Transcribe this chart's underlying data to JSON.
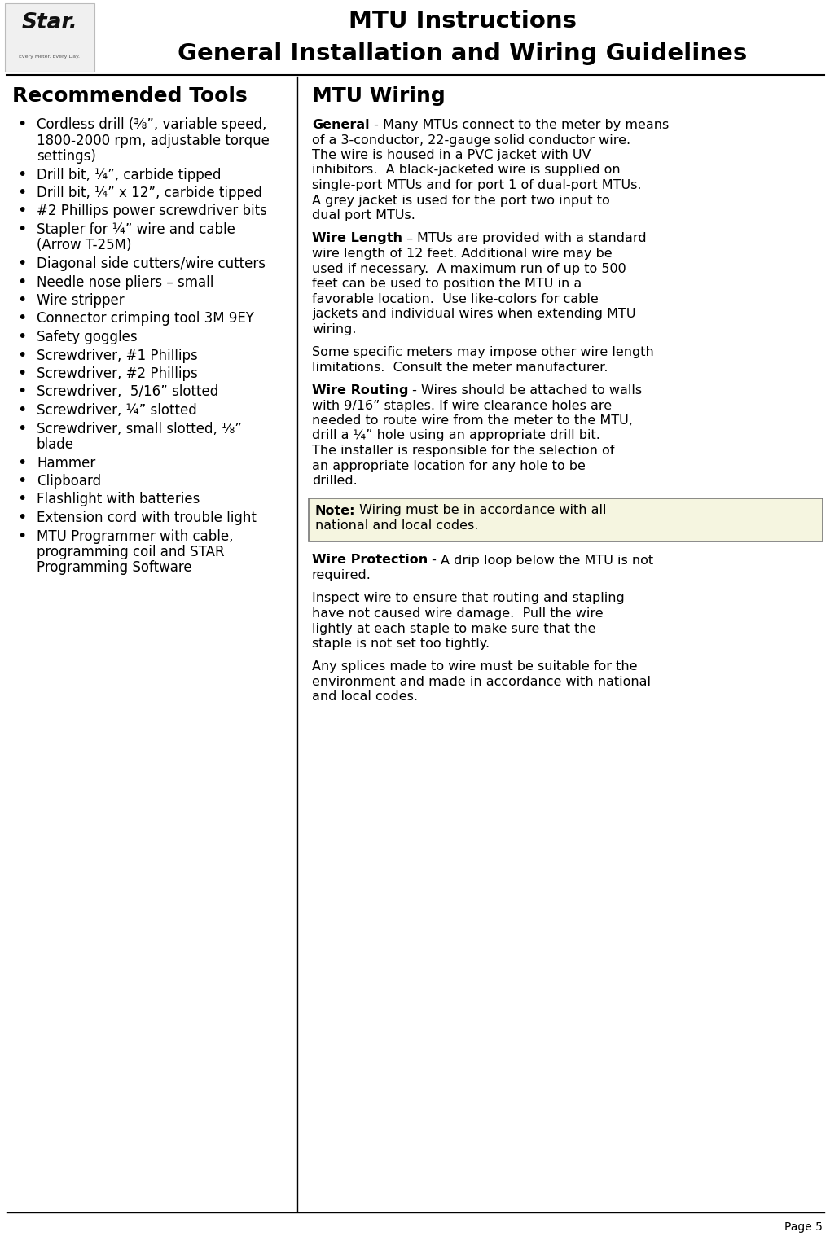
{
  "title_line1": "MTU Instructions",
  "title_line2": "General Installation and Wiring Guidelines",
  "left_heading": "Recommended Tools",
  "left_items": [
    "Cordless drill (⅜”, variable speed,\n1800-2000 rpm, adjustable torque\nsettings)",
    "Drill bit, ¼”, carbide tipped",
    "Drill bit, ¼” x 12”, carbide tipped",
    "#2 Phillips power screwdriver bits",
    "Stapler for ¼” wire and cable\n(Arrow T-25M)",
    "Diagonal side cutters/wire cutters",
    "Needle nose pliers – small",
    "Wire stripper",
    "Connector crimping tool 3M 9EY",
    "Safety goggles",
    "Screwdriver, #1 Phillips",
    "Screwdriver, #2 Phillips",
    "Screwdriver,  5/16” slotted",
    "Screwdriver, ¼” slotted",
    "Screwdriver, small slotted, ⅛”\nblade",
    "Hammer",
    "Clipboard",
    "Flashlight with batteries",
    "Extension cord with trouble light",
    "MTU Programmer with cable,\nprogramming coil and STAR\nProgramming Software"
  ],
  "right_heading": "MTU Wiring",
  "right_sections": [
    {
      "label": "General",
      "sep": " - ",
      "text": "Many MTUs connect to the meter by means of a 3-conductor, 22-gauge solid conductor wire.  The wire is housed in a PVC jacket with UV inhibitors.  A black-jacketed wire is supplied on single-port MTUs and for port 1 of dual-port MTUs.  A grey jacket is used for the port two input to dual port MTUs.",
      "is_note": false
    },
    {
      "label": "Wire Length",
      "sep": " – ",
      "text": "MTUs are provided with a standard wire length of 12 feet. Additional wire may be used if necessary.  A maximum run of up to 500 feet can be used to position the MTU in a favorable location.  Use like-colors for cable jackets and individual wires when extending MTU wiring.",
      "is_note": false
    },
    {
      "label": "",
      "sep": "",
      "text": "Some specific meters may impose other wire length limitations.  Consult the meter manufacturer.",
      "is_note": false
    },
    {
      "label": "Wire Routing",
      "sep": " - ",
      "text": "Wires should be attached to walls with 9/16” staples. If wire clearance holes are needed to route wire from the meter to the MTU, drill a ¼” hole using an appropriate drill bit. The installer is responsible for the selection of an appropriate location for any hole to be drilled.",
      "is_note": false
    },
    {
      "label": "",
      "sep": "",
      "text": "",
      "is_note": true,
      "note_bold": "Note:",
      "note_text": " Wiring must be in accordance with all national and local codes."
    },
    {
      "label": "Wire Protection",
      "sep": " - ",
      "text": "A drip loop below the MTU is not required.",
      "is_note": false
    },
    {
      "label": "",
      "sep": "",
      "text": "Inspect wire to ensure that routing and stapling have not caused wire damage.  Pull the wire lightly at each staple to make sure that the staple is not set too tightly.",
      "is_note": false
    },
    {
      "label": "",
      "sep": "",
      "text": "Any splices made to wire must be suitable for the environment and made in accordance with national and local codes.",
      "is_note": false
    }
  ],
  "footer": "Page 5",
  "bg_color": "#ffffff",
  "text_color": "#000000",
  "divider_color": "#000000",
  "note_bg_color": "#f5f5e0"
}
